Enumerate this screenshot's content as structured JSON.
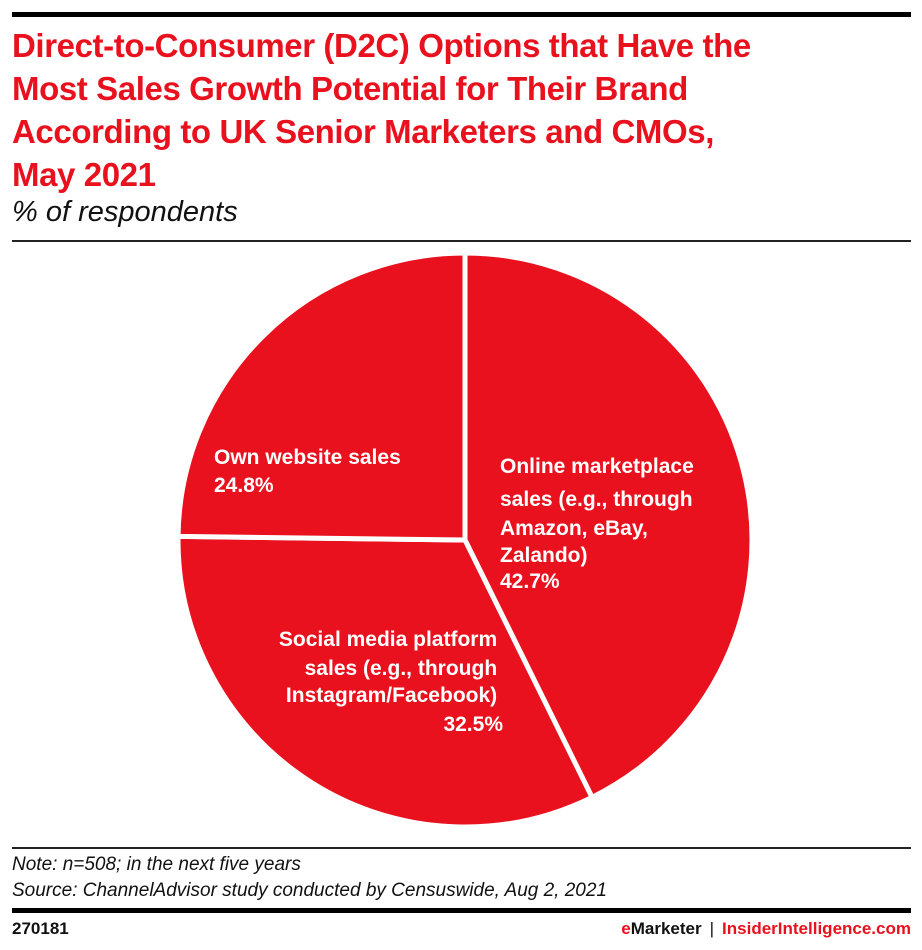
{
  "header": {
    "title": "Direct-to-Consumer (D2C) Options that Have the Most Sales Growth Potential for Their Brand According to UK Senior Marketers and CMOs, May 2021",
    "title_lines": [
      "Direct-to-Consumer (D2C) Options that Have the",
      "Most Sales Growth Potential for Their Brand",
      "According to UK Senior Marketers and CMOs,",
      "May 2021"
    ],
    "subtitle": "% of respondents"
  },
  "chart_data": {
    "type": "pie",
    "title": "Direct-to-Consumer (D2C) Options that Have the Most Sales Growth Potential for Their Brand According to UK Senior Marketers and CMOs, May 2021",
    "subtitle": "% of respondents",
    "start_angle": "12 o'clock",
    "direction": "clockwise",
    "slices": [
      {
        "name": "Online marketplace sales (e.g., through Amazon, eBay, Zalando)",
        "label_lines": [
          "Online marketplace",
          "sales (e.g., through",
          "Amazon, eBay,",
          "Zalando)"
        ],
        "value": 42.7,
        "value_label": "42.7%",
        "color": "#e8111d"
      },
      {
        "name": "Social media platform sales (e.g., through Instagram/Facebook)",
        "label_lines": [
          "Social media platform",
          "sales (e.g., through",
          "Instagram/Facebook)"
        ],
        "value": 32.5,
        "value_label": "32.5%",
        "color": "#e8111d"
      },
      {
        "name": "Own website sales",
        "label_lines": [
          "Own website sales"
        ],
        "value": 24.8,
        "value_label": "24.8%",
        "color": "#e8111d"
      }
    ]
  },
  "notes": {
    "note": "Note: n=508; in the next five years",
    "source": "Source: ChannelAdvisor study conducted by Censuswide, Aug 2, 2021"
  },
  "footer": {
    "chart_id": "270181",
    "brand_prefix": "e",
    "brand_rest": "Marketer",
    "separator": "|",
    "site": "InsiderIntelligence.com"
  },
  "colors": {
    "accent": "#e8111d",
    "slice_border": "#ffffff",
    "text": "#111111"
  }
}
